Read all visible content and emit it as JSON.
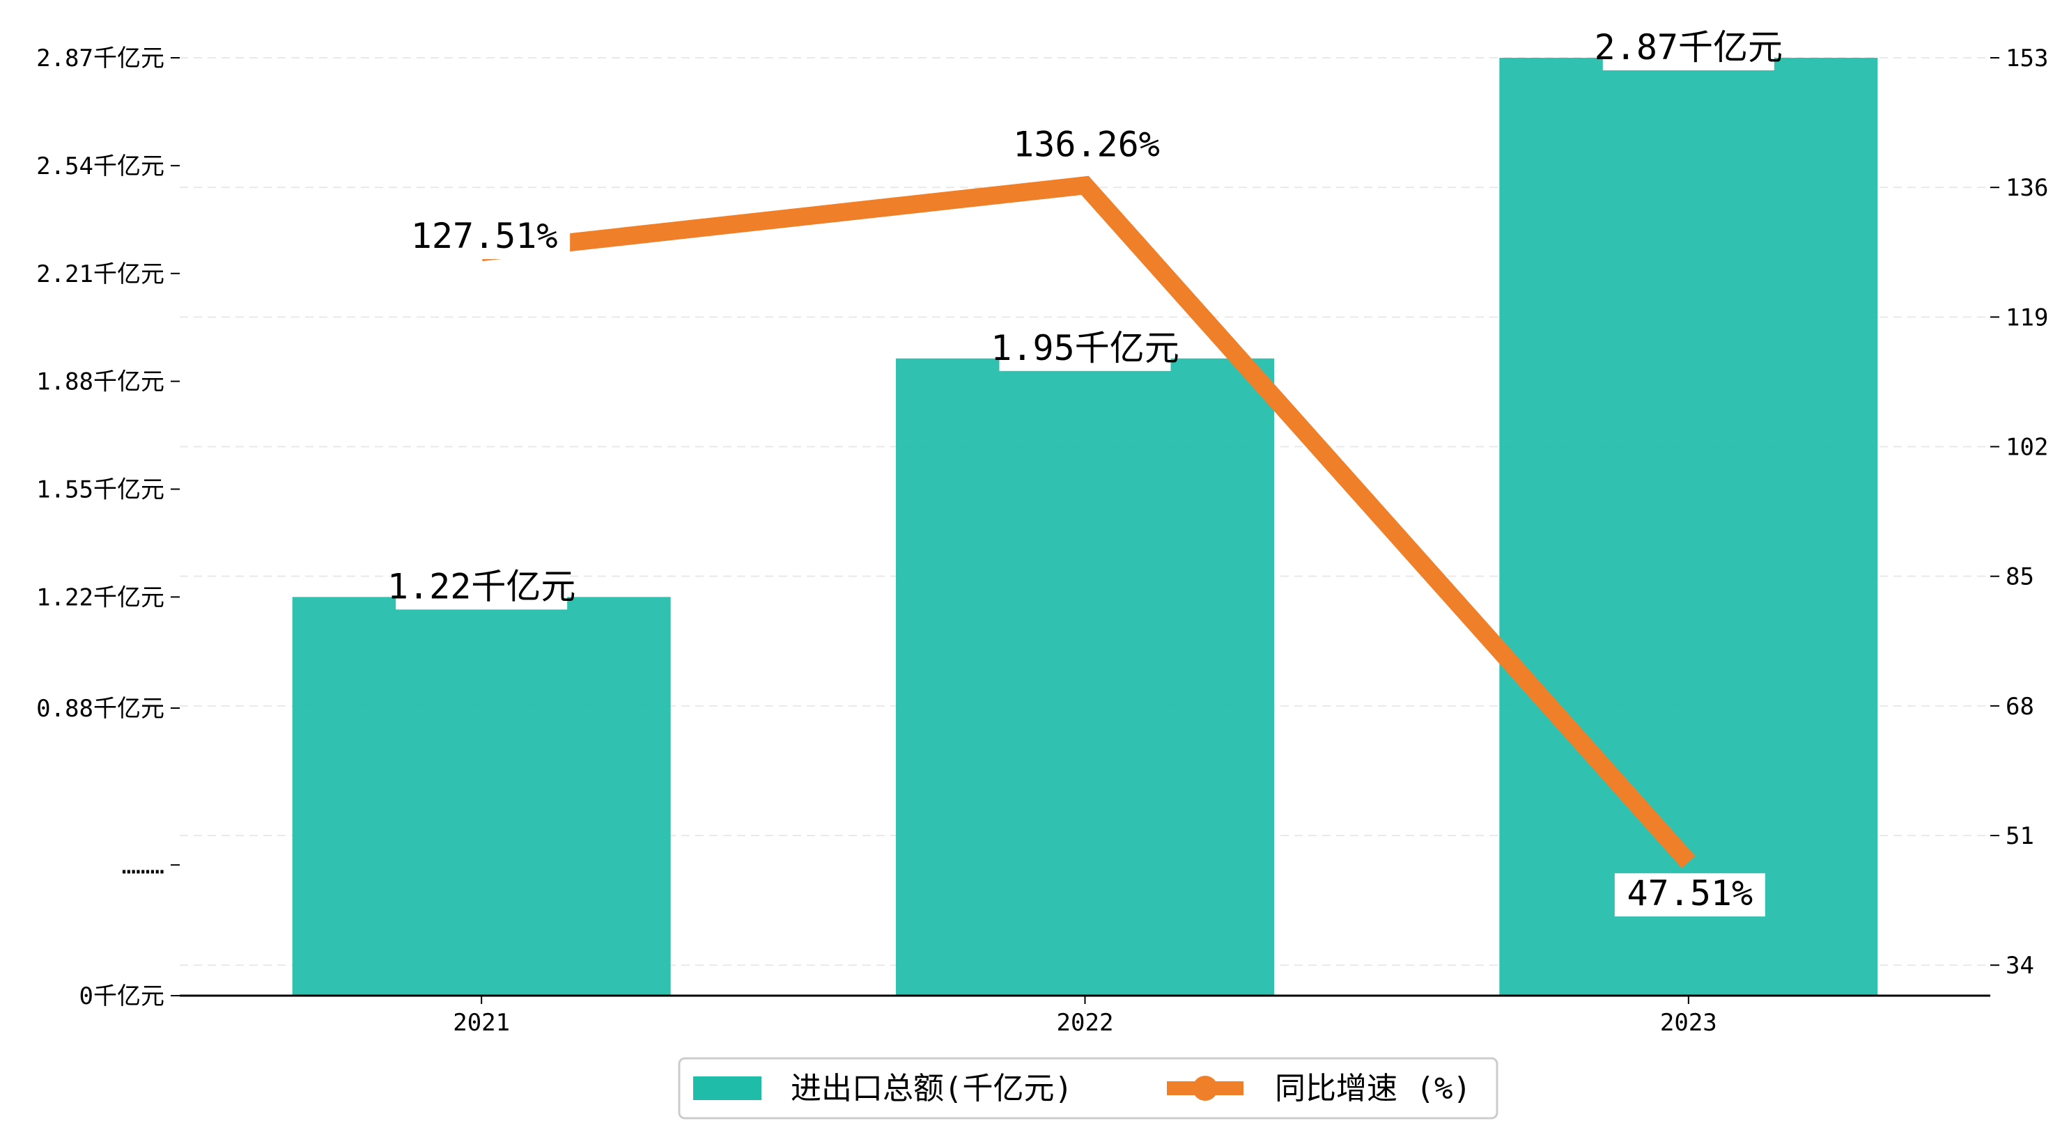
{
  "chart_data": {
    "type": "bar+line",
    "categories": [
      "2021",
      "2022",
      "2023"
    ],
    "series": [
      {
        "name": "进出口总额(千亿元)",
        "type": "bar",
        "axis": "left",
        "values": [
          1.22,
          1.95,
          2.87
        ],
        "labels": [
          "1.22千亿元",
          "1.95千亿元",
          "2.87千亿元"
        ],
        "color": "#20bcaa"
      },
      {
        "name": "同比增速 (%)",
        "type": "line",
        "axis": "right",
        "values": [
          127.51,
          136.26,
          47.51
        ],
        "labels": [
          "127.51%",
          "136.26%",
          "47.51%"
        ],
        "color": "#f07f2a"
      }
    ],
    "left_axis": {
      "ylim": [
        0,
        2.87
      ],
      "ticks": [
        {
          "value": 0,
          "label": "0千亿元"
        },
        {
          "value": 0.4,
          "label": "………"
        },
        {
          "value": 0.88,
          "label": "0.88千亿元"
        },
        {
          "value": 1.22,
          "label": "1.22千亿元"
        },
        {
          "value": 1.55,
          "label": "1.55千亿元"
        },
        {
          "value": 1.88,
          "label": "1.88千亿元"
        },
        {
          "value": 2.21,
          "label": "2.21千亿元"
        },
        {
          "value": 2.54,
          "label": "2.54千亿元"
        },
        {
          "value": 2.87,
          "label": "2.87千亿元"
        }
      ]
    },
    "right_axis": {
      "ylim": [
        30,
        153
      ],
      "ticks": [
        34,
        51,
        68,
        85,
        102,
        119,
        136,
        153
      ]
    },
    "grid": "horizontal-dashed",
    "legend_position": "bottom-center"
  }
}
